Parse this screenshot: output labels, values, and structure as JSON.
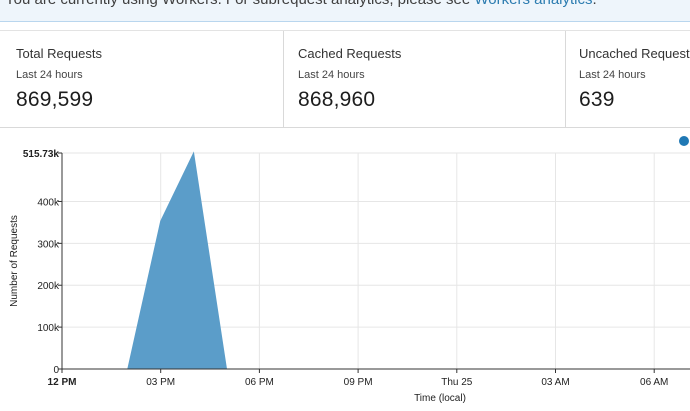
{
  "banner": {
    "text": "You are currently using Workers. For subrequest analytics, please see ",
    "link": "Workers analytics",
    "suffix": "."
  },
  "stats": [
    {
      "title": "Total Requests",
      "period": "Last 24 hours",
      "value": "869,599"
    },
    {
      "title": "Cached Requests",
      "period": "Last 24 hours",
      "value": "868,960"
    },
    {
      "title": "Uncached Requests",
      "period": "Last 24 hours",
      "value": "639"
    }
  ],
  "chart_data": {
    "type": "area",
    "ylabel": "Number of Requests",
    "xlabel": "Time (local)",
    "ytick_labels": [
      "0",
      "100k",
      "200k",
      "300k",
      "400k",
      "515.73k"
    ],
    "ytick_values": [
      0,
      100000,
      200000,
      300000,
      400000,
      515730
    ],
    "ylim": [
      0,
      515730
    ],
    "x_labels": [
      "12 PM",
      "03 PM",
      "06 PM",
      "09 PM",
      "Thu 25",
      "03 AM",
      "06 AM"
    ],
    "x_label_hours": [
      0,
      3,
      6,
      9,
      12,
      15,
      18
    ],
    "series": [
      {
        "color": "#5b9dc9",
        "points": [
          [
            2,
            0
          ],
          [
            3,
            353000
          ],
          [
            4,
            515730
          ],
          [
            5,
            0
          ]
        ]
      }
    ],
    "grid": true,
    "legend": "top-right"
  },
  "colors": {
    "accent": "#1f78b4",
    "area": "#5b9dc9",
    "grid": "#e6e6e6",
    "link": "#2c7cb0"
  }
}
